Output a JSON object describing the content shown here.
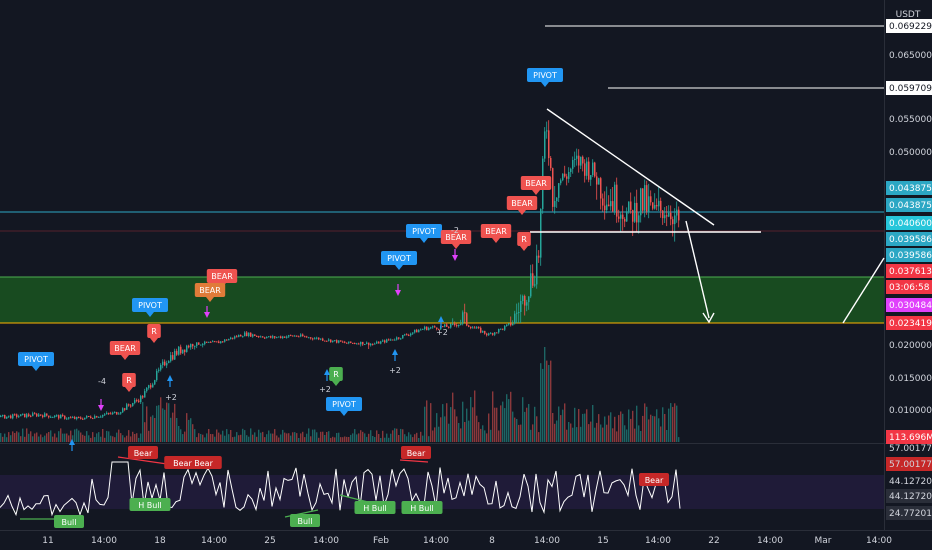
{
  "header": {
    "currency": "USDT"
  },
  "chart_data": [
    {
      "type": "candlestick",
      "title": "",
      "x_ticks": [
        "11",
        "14:00",
        "18",
        "14:00",
        "25",
        "14:00",
        "Feb",
        "14:00",
        "8",
        "14:00",
        "15",
        "14:00",
        "22",
        "14:00",
        "Mar",
        "14:00"
      ],
      "price_axis_ticks": [
        "0.065000",
        "0.055000",
        "0.050000",
        "0.020000",
        "0.015000",
        "0.010000"
      ],
      "price_ylim": [
        0.0045,
        0.07
      ],
      "price_path": [
        {
          "x": 0,
          "y": 0.0088
        },
        {
          "x": 3,
          "y": 0.0092
        },
        {
          "x": 6,
          "y": 0.0085
        },
        {
          "x": 9,
          "y": 0.0095
        },
        {
          "x": 11,
          "y": 0.012
        },
        {
          "x": 13,
          "y": 0.018
        },
        {
          "x": 15,
          "y": 0.0205
        },
        {
          "x": 17,
          "y": 0.0215
        },
        {
          "x": 19,
          "y": 0.026
        },
        {
          "x": 21,
          "y": 0.024
        },
        {
          "x": 23,
          "y": 0.025
        },
        {
          "x": 25,
          "y": 0.0232
        },
        {
          "x": 27,
          "y": 0.021
        },
        {
          "x": 28,
          "y": 0.0212
        },
        {
          "x": 29,
          "y": 0.0205
        },
        {
          "x": 30,
          "y": 0.0222
        },
        {
          "x": 31,
          "y": 0.024
        },
        {
          "x": 33,
          "y": 0.029
        },
        {
          "x": 35,
          "y": 0.03
        },
        {
          "x": 36,
          "y": 0.032
        },
        {
          "x": 37,
          "y": 0.029
        },
        {
          "x": 38,
          "y": 0.0255
        },
        {
          "x": 39,
          "y": 0.0285
        },
        {
          "x": 40,
          "y": 0.032
        },
        {
          "x": 41,
          "y": 0.035
        },
        {
          "x": 42,
          "y": 0.039
        },
        {
          "x": 42.5,
          "y": 0.0555
        },
        {
          "x": 43,
          "y": 0.044
        },
        {
          "x": 44,
          "y": 0.046
        },
        {
          "x": 45,
          "y": 0.0485
        },
        {
          "x": 46,
          "y": 0.047
        },
        {
          "x": 47,
          "y": 0.044
        },
        {
          "x": 48,
          "y": 0.043
        },
        {
          "x": 49,
          "y": 0.0415
        },
        {
          "x": 50,
          "y": 0.043
        },
        {
          "x": 51,
          "y": 0.042
        },
        {
          "x": 52,
          "y": 0.0425
        },
        {
          "x": 53,
          "y": 0.0405
        }
      ],
      "horizontal_levels": [
        {
          "label": "0.069229",
          "value": 0.0692,
          "color": "#ffffff"
        },
        {
          "label": "0.059709",
          "value": 0.0597,
          "color": "#ffffff"
        },
        {
          "label": "0.043875",
          "value": 0.044,
          "color": "#2ca7c4"
        },
        {
          "label": "0.043875",
          "value": 0.043,
          "color": "#2ca7c4"
        },
        {
          "label": "0.040600",
          "value": 0.0406,
          "color": "#26c6da"
        },
        {
          "label": "0.039586",
          "value": 0.0395,
          "color": "#2ca7c4"
        },
        {
          "label": "0.039586",
          "value": 0.0385,
          "color": "#2ca7c4"
        },
        {
          "label": "0.037613",
          "value": 0.037,
          "color": "#f23645"
        },
        {
          "label": "03:06:58",
          "value": 0.0359,
          "color": "#f23645"
        },
        {
          "label": "0.030484",
          "value": 0.0333,
          "color": "#e040fb"
        },
        {
          "label": "0.023419",
          "value": 0.0318,
          "color": "#f23645"
        }
      ],
      "zone": {
        "top": 0.0369,
        "bottom": 0.0318,
        "color": "#1b5e20"
      },
      "volume_label": "113.696M"
    },
    {
      "type": "line",
      "title": "",
      "y_labels": [
        "57.001772",
        "57.001772",
        "44.127201",
        "44.127201",
        "24.772015"
      ],
      "signals": [
        {
          "label": "Bear",
          "x": 21,
          "kind": "bear"
        },
        {
          "label": "Bear Bear",
          "x": 30,
          "kind": "bear"
        },
        {
          "label": "Bear",
          "x": 58,
          "kind": "bear"
        },
        {
          "label": "Bear",
          "x": 90,
          "kind": "bear"
        },
        {
          "label": "H Bull",
          "x": 23,
          "kind": "bull"
        },
        {
          "label": "Bull",
          "x": 13,
          "kind": "bull"
        },
        {
          "label": "Bull",
          "x": 42,
          "kind": "bull"
        },
        {
          "label": "H Bull",
          "x": 52,
          "kind": "bull"
        },
        {
          "label": "H Bull",
          "x": 60,
          "kind": "bull"
        }
      ]
    }
  ],
  "annotations": {
    "pivot_label": "PIVOT",
    "bear_label": "BEAR",
    "r_label": "R",
    "counts": [
      "-4",
      "+2",
      "+2",
      "+2",
      "+2",
      "-2"
    ]
  }
}
